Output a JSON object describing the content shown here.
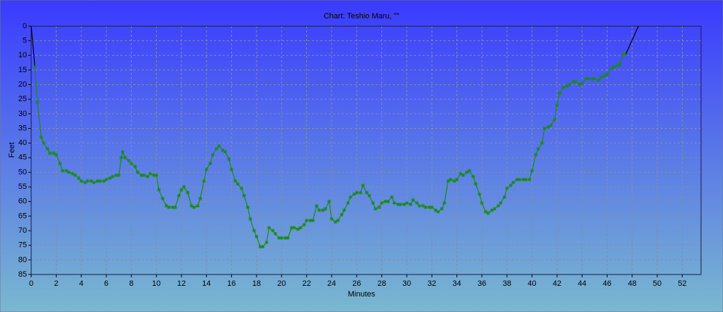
{
  "chart_data": {
    "type": "line",
    "title": "Chart: Teshio Maru, \"\"",
    "x_label": "Minutes",
    "y_label": "Feet",
    "xlim": [
      0,
      53.5
    ],
    "ylim": [
      0,
      85
    ],
    "y_inverted": true,
    "grid": true,
    "xticks": [
      0,
      2,
      4,
      6,
      8,
      10,
      12,
      14,
      16,
      18,
      20,
      22,
      24,
      26,
      28,
      30,
      32,
      34,
      36,
      38,
      40,
      42,
      44,
      46,
      48,
      50,
      52
    ],
    "yticks": [
      0,
      5,
      10,
      15,
      20,
      25,
      30,
      35,
      40,
      45,
      50,
      55,
      60,
      65,
      70,
      75,
      80,
      85
    ],
    "series": [
      {
        "color": "#000000",
        "markers": false,
        "x": [
          0,
          0.3
        ],
        "values": [
          0,
          14
        ]
      },
      {
        "color": "#1a8a1a",
        "markers": true,
        "x": [
          0.3,
          0.5,
          0.8,
          1.0,
          1.3,
          1.5,
          1.8,
          2.0,
          2.3,
          2.5,
          2.8,
          3.0,
          3.3,
          3.5,
          3.8,
          4.0,
          4.3,
          4.5,
          4.8,
          5.0,
          5.3,
          5.5,
          5.8,
          6.0,
          6.3,
          6.5,
          6.8,
          7.0,
          7.2,
          7.3,
          7.5,
          7.8,
          8.0,
          8.3,
          8.5,
          8.8,
          9.0,
          9.3,
          9.5,
          9.8,
          10.0,
          10.2,
          10.5,
          10.8,
          11.0,
          11.3,
          11.5,
          11.8,
          12.0,
          12.2,
          12.5,
          12.8,
          13.0,
          13.3,
          13.5,
          13.8,
          14.0,
          14.3,
          14.5,
          14.8,
          15.0,
          15.3,
          15.5,
          15.8,
          16.0,
          16.3,
          16.5,
          16.8,
          17.0,
          17.3,
          17.5,
          17.8,
          18.0,
          18.3,
          18.5,
          18.8,
          19.0,
          19.3,
          19.5,
          19.8,
          20.0,
          20.3,
          20.5,
          20.8,
          21.0,
          21.3,
          21.5,
          21.8,
          22.0,
          22.3,
          22.5,
          22.8,
          23.0,
          23.3,
          23.5,
          23.8,
          24.0,
          24.3,
          24.5,
          24.8,
          25.0,
          25.3,
          25.5,
          25.8,
          26.0,
          26.3,
          26.5,
          26.8,
          27.0,
          27.3,
          27.5,
          27.8,
          28.0,
          28.3,
          28.5,
          28.8,
          29.0,
          29.3,
          29.5,
          29.8,
          30.0,
          30.3,
          30.5,
          30.8,
          31.0,
          31.3,
          31.5,
          31.8,
          32.0,
          32.3,
          32.5,
          32.8,
          33.0,
          33.3,
          33.5,
          33.8,
          34.0,
          34.3,
          34.5,
          34.8,
          35.0,
          35.3,
          35.5,
          35.8,
          36.0,
          36.3,
          36.5,
          36.8,
          37.0,
          37.3,
          37.5,
          37.8,
          38.0,
          38.3,
          38.5,
          38.8,
          39.0,
          39.3,
          39.5,
          39.8,
          40.0,
          40.3,
          40.5,
          40.8,
          41.0,
          41.3,
          41.5,
          41.8,
          42.0,
          42.2,
          42.5,
          42.8,
          43.0,
          43.3,
          43.5,
          43.8,
          44.0,
          44.3,
          44.5,
          44.8,
          45.0,
          45.3,
          45.5,
          45.8,
          46.0,
          46.3,
          46.5,
          46.8,
          47.0,
          47.3,
          47.5
        ],
        "values": [
          14,
          26,
          38,
          40,
          42,
          43.5,
          43.5,
          44,
          47,
          49.5,
          49.5,
          50,
          50.5,
          51,
          52,
          53,
          53.5,
          53,
          53,
          53.5,
          53,
          53,
          53,
          52.5,
          52,
          51.5,
          51,
          51,
          45,
          43,
          45,
          46,
          47,
          48,
          50,
          51,
          51,
          51.5,
          50.5,
          51,
          51,
          56,
          59,
          61.5,
          62,
          62,
          62,
          58,
          56,
          55,
          57,
          61.5,
          62,
          61.5,
          59,
          53,
          49,
          47,
          44,
          42,
          41,
          42.5,
          43,
          45.5,
          49,
          53,
          54,
          55.5,
          58,
          62,
          66,
          70,
          72,
          75.5,
          75.5,
          74,
          69,
          70,
          71,
          72.5,
          72.5,
          72.5,
          72.5,
          69,
          69,
          69.5,
          69,
          68,
          66.5,
          66.5,
          66.5,
          61.5,
          63,
          63,
          62.5,
          60,
          66,
          67,
          66.5,
          64.5,
          63,
          60.5,
          58.5,
          57.5,
          57,
          57,
          54.5,
          57,
          58,
          60.5,
          62.5,
          62,
          60.5,
          60,
          60,
          58.5,
          60.5,
          61,
          61,
          61,
          60.5,
          61,
          59.5,
          60.5,
          61.5,
          61.5,
          62,
          62,
          62,
          63,
          63.5,
          62.5,
          60.5,
          53,
          52.5,
          53,
          52.5,
          50.5,
          51,
          50,
          49.5,
          51.5,
          54,
          57.5,
          60.5,
          63.5,
          64,
          63,
          62.5,
          61.5,
          60.5,
          58.5,
          55.5,
          54.5,
          53.5,
          52.5,
          52.5,
          52.5,
          52.5,
          52.5,
          49.5,
          44,
          42,
          40,
          35,
          34.5,
          34,
          32,
          27,
          23,
          21,
          20.5,
          20,
          19,
          19,
          20,
          19.5,
          18,
          18,
          18,
          18,
          18.5,
          17.5,
          17,
          16.5,
          14.5,
          14,
          13.5,
          13,
          9.5,
          9.5
        ]
      },
      {
        "color": "#000000",
        "markers": false,
        "x": [
          47.5,
          48.5
        ],
        "values": [
          9.5,
          0
        ]
      }
    ]
  }
}
